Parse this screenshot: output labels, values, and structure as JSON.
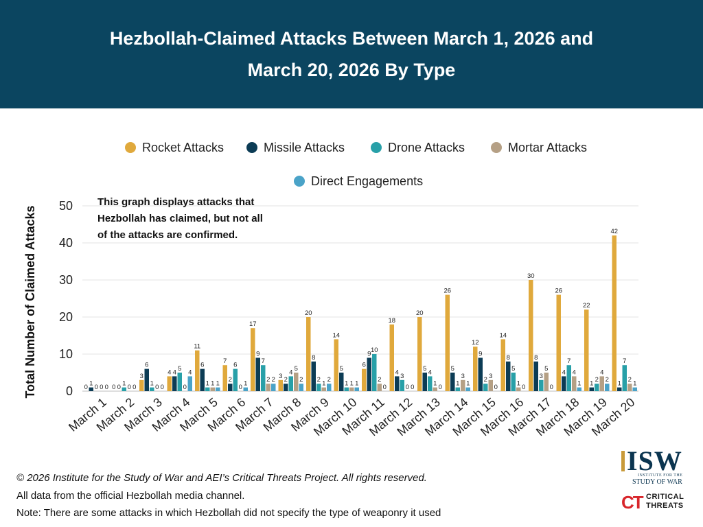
{
  "header": {
    "title_line1": "Hezbollah-Claimed Attacks Between March 1, 2026 and",
    "title_line2": "March 20, 2026 By Type"
  },
  "colors": {
    "header_bg": "#0b4560",
    "rocket": "#e0a93c",
    "missile": "#0c3c55",
    "drone": "#28a0a8",
    "mortar": "#b5a085",
    "direct": "#4aa3c8"
  },
  "chart_data": {
    "type": "bar",
    "ylabel": "Total Number of Claimed Attacks",
    "xlabel": "",
    "ylim": [
      0,
      50
    ],
    "yticks": [
      0,
      10,
      20,
      30,
      40,
      50
    ],
    "grid": true,
    "legend_placement": "top",
    "annotation": [
      "This graph displays attacks that",
      "Hezbollah has claimed, but not all",
      "of the attacks are confirmed."
    ],
    "categories": [
      "March 1",
      "March 2",
      "March 3",
      "March 4",
      "March 5",
      "March 6",
      "March 7",
      "March 8",
      "March 9",
      "March 10",
      "March 11",
      "March 12",
      "March 13",
      "March 14",
      "March 15",
      "March 16",
      "March 17",
      "March 18",
      "March 19",
      "March 20"
    ],
    "series": [
      {
        "name": "Rocket Attacks",
        "color": "#e0a93c",
        "values": [
          0,
          0,
          3,
          4,
          11,
          7,
          17,
          3,
          20,
          14,
          6,
          18,
          20,
          26,
          12,
          14,
          30,
          26,
          22,
          42
        ]
      },
      {
        "name": "Missile Attacks",
        "color": "#0c3c55",
        "values": [
          1,
          0,
          6,
          4,
          6,
          2,
          9,
          2,
          8,
          5,
          9,
          4,
          5,
          5,
          9,
          8,
          8,
          4,
          1,
          1
        ]
      },
      {
        "name": "Drone Attacks",
        "color": "#28a0a8",
        "values": [
          0,
          1,
          1,
          5,
          1,
          6,
          7,
          4,
          2,
          1,
          10,
          3,
          4,
          1,
          2,
          5,
          3,
          7,
          2,
          7
        ]
      },
      {
        "name": "Mortar Attacks",
        "color": "#b5a085",
        "values": [
          0,
          0,
          0,
          0,
          1,
          0,
          2,
          5,
          1,
          1,
          2,
          0,
          1,
          3,
          3,
          1,
          5,
          4,
          4,
          2
        ]
      },
      {
        "name": "Direct Engagements",
        "color": "#4aa3c8",
        "values": [
          0,
          0,
          0,
          4,
          1,
          1,
          2,
          2,
          2,
          1,
          0,
          0,
          0,
          1,
          0,
          0,
          0,
          1,
          2,
          1
        ]
      }
    ]
  },
  "footer": {
    "copyright": "© 2026 Institute for the Study of War and AEI’s Critical Threats Project. All rights reserved.",
    "source": "All data from the official Hezbollah media channel.",
    "note": "Note: There are some attacks in which Hezbollah did not specify the type of weaponry it used"
  },
  "logos": {
    "isw": "ISW",
    "isw_sub1": "INSTITUTE FOR THE",
    "isw_sub2": "STUDY OF WAR",
    "ct_mark": "CT",
    "ct_line1": "CRITICAL",
    "ct_line2": "THREATS"
  }
}
